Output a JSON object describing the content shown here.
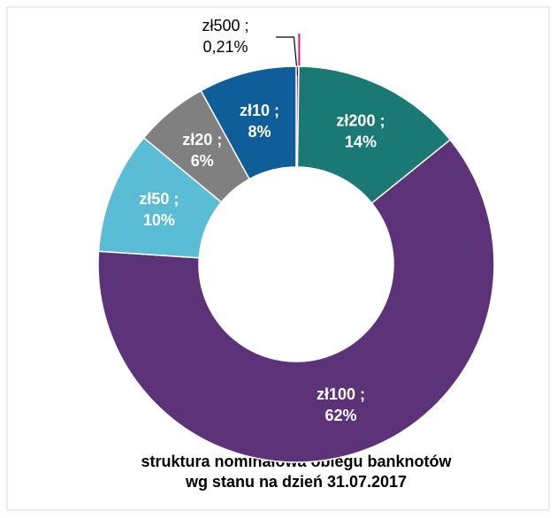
{
  "chart_data": {
    "type": "pie",
    "title": [
      "struktura nominałowa obiegu banknotów",
      "wg stanu na dzień 31.07.2017"
    ],
    "categories": [
      "zł500 ;",
      "zł200 ;",
      "zł100 ;",
      "zł50 ;",
      "zł20 ;",
      "zł10 ;"
    ],
    "values": [
      0.21,
      14,
      62,
      10,
      6,
      8
    ],
    "value_labels": [
      "0,21%",
      "14%",
      "62%",
      "10%",
      "6%",
      "8%"
    ],
    "colors": [
      "#e0187a",
      "#1a7a73",
      "#5c3278",
      "#5bbcd6",
      "#808080",
      "#0f5e99"
    ],
    "donut": true
  }
}
